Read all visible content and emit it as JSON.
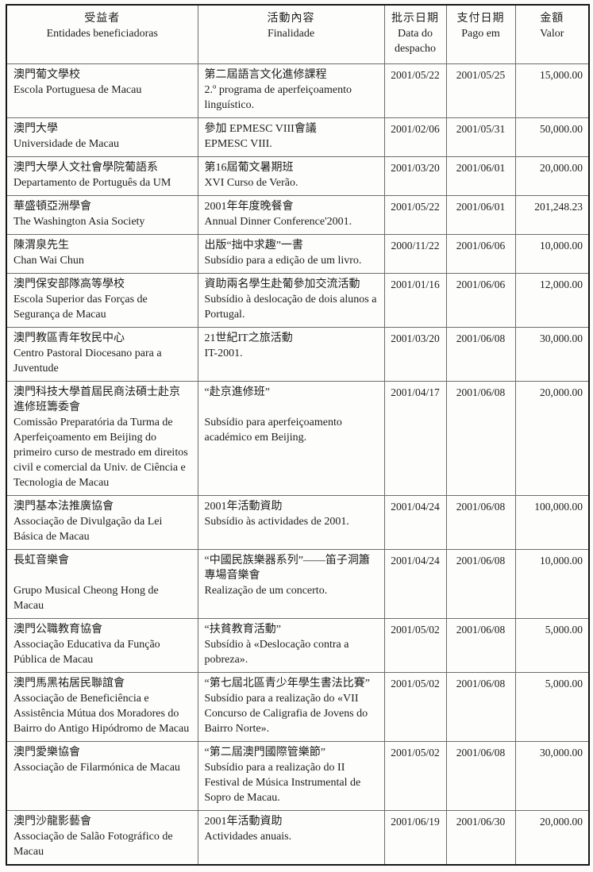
{
  "table": {
    "header": {
      "beneficiary": {
        "zh": "受益者",
        "pt": "Entidades beneficiadoras"
      },
      "purpose": {
        "zh": "活動內容",
        "pt": "Finalidade"
      },
      "despacho": {
        "zh": "批示日期",
        "pt": "Data do despacho"
      },
      "paid": {
        "zh": "支付日期",
        "pt": "Pago em"
      },
      "amount": {
        "zh": "金額",
        "pt": "Valor"
      }
    },
    "rows": [
      {
        "beneficiary_zh": "澳門葡文學校",
        "beneficiary_pt": "Escola Portuguesa de Macau",
        "purpose_zh": "第二屆語言文化進修課程",
        "purpose_pt": "2.º programa de aperfeiçoamento linguístico.",
        "despacho_date": "2001/05/22",
        "paid_date": "2001/05/25",
        "amount": "15,000.00"
      },
      {
        "beneficiary_zh": "澳門大學",
        "beneficiary_pt": "Universidade de Macau",
        "purpose_zh": "參加 EPMESC VIII會議",
        "purpose_pt": "EPMESC VIII.",
        "despacho_date": "2001/02/06",
        "paid_date": "2001/05/31",
        "amount": "50,000.00"
      },
      {
        "beneficiary_zh": "澳門大學人文社會學院葡語系",
        "beneficiary_pt": "Departamento de Português da UM",
        "purpose_zh": "第16屆葡文暑期班",
        "purpose_pt": "XVI Curso de Verão.",
        "despacho_date": "2001/03/20",
        "paid_date": "2001/06/01",
        "amount": "20,000.00"
      },
      {
        "beneficiary_zh": "華盛頓亞洲學會",
        "beneficiary_pt": "The Washington Asia Society",
        "purpose_zh": "2001年年度晚餐會",
        "purpose_pt": "Annual Dinner Conference'2001.",
        "despacho_date": "2001/05/22",
        "paid_date": "2001/06/01",
        "amount": "201,248.23"
      },
      {
        "beneficiary_zh": "陳渭泉先生",
        "beneficiary_pt": "Chan Wai Chun",
        "purpose_zh": "出版“拙中求趣”一書",
        "purpose_pt": "Subsídio para a edição de um livro.",
        "despacho_date": "2000/11/22",
        "paid_date": "2001/06/06",
        "amount": "10,000.00"
      },
      {
        "beneficiary_zh": "澳門保安部隊高等學校",
        "beneficiary_pt": "Escola Superior das Forças de Segurança de Macau",
        "purpose_zh": "資助兩名學生赴葡參加交流活動",
        "purpose_pt": "Subsídio à deslocação de dois alunos a Portugal.",
        "despacho_date": "2001/01/16",
        "paid_date": "2001/06/06",
        "amount": "12,000.00"
      },
      {
        "beneficiary_zh": "澳門教區青年牧民中心",
        "beneficiary_pt": "Centro Pastoral Diocesano para a Juventude",
        "purpose_zh": "21世紀IT之旅活動",
        "purpose_pt": "IT-2001.",
        "despacho_date": "2001/03/20",
        "paid_date": "2001/06/08",
        "amount": "30,000.00"
      },
      {
        "beneficiary_zh": "澳門科技大學首屆民商法碩士赴京進修班籌委會",
        "beneficiary_pt": "Comissão Preparatória da Turma de Aperfeiçoamento em Beijing do primeiro curso de mestrado em direitos civil e comercial da Univ. de Ciência e Tecnologia de Macau",
        "purpose_zh": "“赴京進修班”",
        "purpose_pt": "Subsídio para aperfeiçoamento académico em Beijing.",
        "purpose_pt_gap": true,
        "despacho_date": "2001/04/17",
        "paid_date": "2001/06/08",
        "amount": "20,000.00"
      },
      {
        "beneficiary_zh": "澳門基本法推廣協會",
        "beneficiary_pt": "Associação de Divulgação da Lei Básica de Macau",
        "purpose_zh": "2001年活動資助",
        "purpose_pt": "Subsídio às actividades de 2001.",
        "despacho_date": "2001/04/24",
        "paid_date": "2001/06/08",
        "amount": "100,000.00"
      },
      {
        "beneficiary_zh": "長虹音樂會",
        "beneficiary_pt": "Grupo Musical Cheong Hong de Macau",
        "beneficiary_pt_gap": true,
        "purpose_zh": "“中國民族樂器系列”——笛子洞簫專場音樂會",
        "purpose_pt": "Realização de um concerto.",
        "despacho_date": "2001/04/24",
        "paid_date": "2001/06/08",
        "amount": "10,000.00"
      },
      {
        "beneficiary_zh": "澳門公職教育協會",
        "beneficiary_pt": "Associação Educativa da Função Pública de Macau",
        "purpose_zh": "“扶貧教育活動”",
        "purpose_pt": "Subsídio à «Deslocação contra a pobreza».",
        "despacho_date": "2001/05/02",
        "paid_date": "2001/06/08",
        "amount": "5,000.00"
      },
      {
        "beneficiary_zh": "澳門馬黑祐居民聯誼會",
        "beneficiary_pt": "Associação de Beneficiência e Assistência Mútua dos Moradores do Bairro do Antigo Hipódromo de Macau",
        "purpose_zh": "“第七屆北區青少年學生書法比賽”",
        "purpose_pt": "Subsídio para a realização do «VII Concurso de Caligrafia de Jovens do Bairro Norte».",
        "despacho_date": "2001/05/02",
        "paid_date": "2001/06/08",
        "amount": "5,000.00"
      },
      {
        "beneficiary_zh": "澳門愛樂協會",
        "beneficiary_pt": "Associação de Filarmónica de Macau",
        "purpose_zh": "“第二屆澳門國際管樂節”",
        "purpose_pt": "Subsídio para a realização do II Festival de Música Instrumental de Sopro de Macau.",
        "despacho_date": "2001/05/02",
        "paid_date": "2001/06/08",
        "amount": "30,000.00"
      },
      {
        "beneficiary_zh": "澳門沙龍影藝會",
        "beneficiary_pt": "Associação de Salão Fotográfico de Macau",
        "purpose_zh": "2001年活動資助",
        "purpose_pt": "Actividades anuais.",
        "despacho_date": "2001/06/19",
        "paid_date": "2001/06/30",
        "amount": "20,000.00"
      }
    ]
  }
}
